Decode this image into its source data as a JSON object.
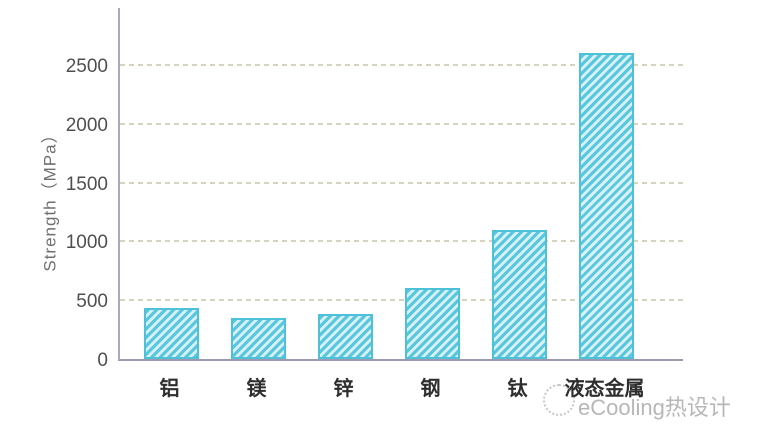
{
  "chart_data": {
    "type": "bar",
    "title": "",
    "categories": [
      "铝",
      "镁",
      "锌",
      "钢",
      "钛",
      "液态金属"
    ],
    "values": [
      430,
      350,
      380,
      600,
      1100,
      2600
    ],
    "xlabel": "",
    "ylabel": "Strength（MPa）",
    "yticks": [
      0,
      500,
      1000,
      1500,
      2000,
      2500
    ],
    "ylim": [
      0,
      3000
    ],
    "grid": "horizontal-dashed",
    "legend": "none",
    "bar_style": {
      "fill_stripe_color": "#59c7dd",
      "fill_stripe_light": "#d8f1f7",
      "border_color": "#4cc1d9",
      "hatch": "diagonal-forward"
    },
    "gridline_color": "#d7d4bd",
    "axis_color": "#9d9ab0",
    "tick_text_color": "#4f4f4f"
  },
  "watermark": {
    "text": "eCooling热设计",
    "color": "#b7b7b7"
  }
}
